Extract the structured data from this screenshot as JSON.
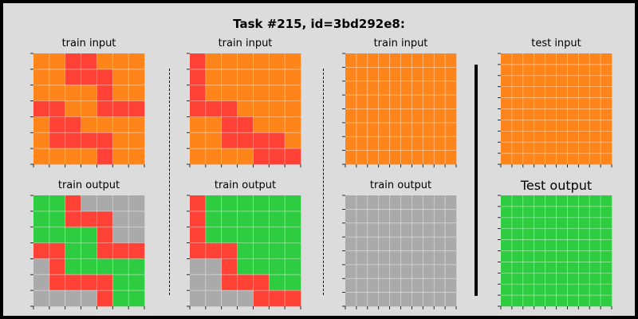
{
  "title": "Task #215, id=3bd292e8:",
  "palette": {
    "O": "#ff851b",
    "R": "#ff4136",
    "G": "#2ecc40",
    "X": "#aaaaaa"
  },
  "pairs": [
    {
      "input_label": "train input",
      "output_label": "train output",
      "input": [
        "OORROOO",
        "OORRROO",
        "OOOOROO",
        "RROORRR",
        "ORROOOO",
        "ORRRROO",
        "OOOOROO"
      ],
      "output": [
        "GGRXXXX",
        "GGRRRXX",
        "GGGGRXX",
        "RRGGRRR",
        "XRGGGGG",
        "XRRRRGG",
        "XXXXRGG"
      ]
    },
    {
      "input_label": "train input",
      "output_label": "train output",
      "input": [
        "ROOOOOO",
        "ROOOOOO",
        "ROOOOOO",
        "RRROOOO",
        "OORROOO",
        "OORRRRO",
        "OOOORRR"
      ],
      "output": [
        "RGGGGGG",
        "RGGGGGG",
        "RGGGGGG",
        "RRRGGGG",
        "XXRGGGG",
        "XXRRRGG",
        "XXXXRRR"
      ]
    },
    {
      "input_label": "train input",
      "output_label": "train output",
      "input": [
        "OOOOOOOOOO",
        "OOOOOOOOOO",
        "OOOOOOOOOO",
        "OOOOOOOOOO",
        "OOOOOOOOOO",
        "OOOOOOOOOO",
        "OOOOOOOOOO",
        "OOOOOOOOOO"
      ],
      "output": [
        "XXXXXXXXXX",
        "XXXXXXXXXX",
        "XXXXXXXXXX",
        "XXXXXXXXXX",
        "XXXXXXXXXX",
        "XXXXXXXXXX",
        "XXXXXXXXXX",
        "XXXXXXXXXX"
      ]
    },
    {
      "input_label": "test input",
      "output_label": "Test output",
      "input": [
        "OOOOOOOOOO",
        "OOOOOOOOOO",
        "OOOOOOOOOO",
        "OOOOOOOOOO",
        "OOOOOOOOOO",
        "OOOOOOOOOO",
        "OOOOOOOOOO",
        "OOOOOOOOOO",
        "OOOOOOOOOO",
        "OOOOOOOOOO"
      ],
      "output": [
        "GGGGGGGGGG",
        "GGGGGGGGGG",
        "GGGGGGGGGG",
        "GGGGGGGGGG",
        "GGGGGGGGGG",
        "GGGGGGGGGG",
        "GGGGGGGGGG",
        "GGGGGGGGGG",
        "GGGGGGGGGG",
        "GGGGGGGGGG"
      ]
    }
  ]
}
